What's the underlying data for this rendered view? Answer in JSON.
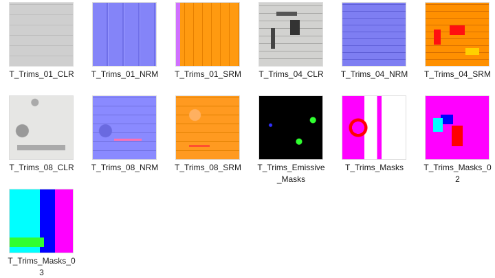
{
  "files": [
    "T_Trims_01_CLR",
    "T_Trims_01_NRM",
    "T_Trims_01_SRM",
    "T_Trims_04_CLR",
    "T_Trims_04_NRM",
    "T_Trims_04_SRM",
    "T_Trims_08_CLR",
    "T_Trims_08_NRM",
    "T_Trims_08_SRM",
    "T_Trims_Emissive_Masks",
    "T_Trims_Masks",
    "T_Trims_Masks_02",
    "T_Trims_Masks_03"
  ]
}
